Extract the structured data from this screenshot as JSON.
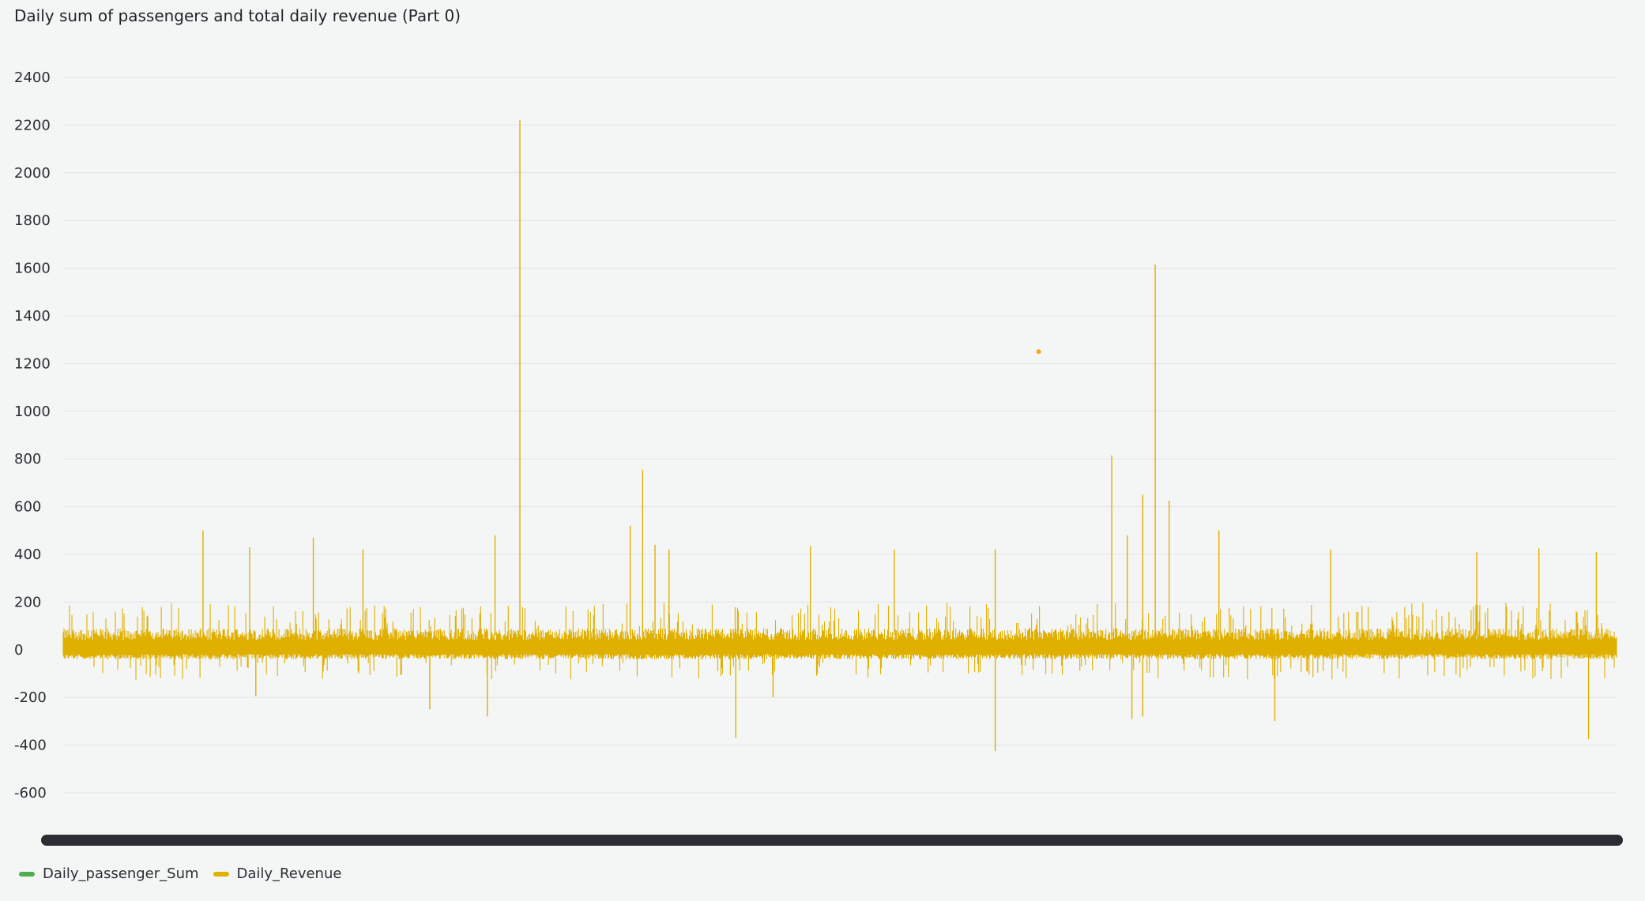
{
  "chart_title": "Daily sum of passengers and total daily revenue (Part 0)",
  "colors": {
    "passenger": "#4caf50",
    "revenue": "#e0b000",
    "outlier_point": "#f5a623",
    "scrollbar": "#2a2e33",
    "grid": "#e2e4e6",
    "background": "#f4f5f5"
  },
  "legend": [
    {
      "label": "Daily_passenger_Sum",
      "color": "#4caf50"
    },
    {
      "label": "Daily_Revenue",
      "color": "#e0b000"
    }
  ],
  "chart_data": {
    "type": "line",
    "title": "Daily sum of passengers and total daily revenue (Part 0)",
    "xlabel": "",
    "ylabel": "",
    "ylim": [
      -600,
      2400
    ],
    "yticks": [
      "2400",
      "2200",
      "2000",
      "1800",
      "1600",
      "1400",
      "1200",
      "1000",
      "800",
      "600",
      "400",
      "200",
      "0",
      "-200",
      "-400",
      "-600"
    ],
    "grid": true,
    "legend_position": "bottom-left",
    "series": [
      {
        "name": "Daily_Revenue",
        "color": "#e0b000",
        "band": {
          "typical_high": 90,
          "typical_low": -40,
          "noise_high": 180,
          "noise_low": -120
        },
        "spikes": [
          {
            "x": 0.09,
            "value": 500
          },
          {
            "x": 0.12,
            "value": 430
          },
          {
            "x": 0.124,
            "value": -195
          },
          {
            "x": 0.161,
            "value": 470
          },
          {
            "x": 0.193,
            "value": 420
          },
          {
            "x": 0.236,
            "value": -250
          },
          {
            "x": 0.278,
            "value": 480
          },
          {
            "x": 0.273,
            "value": -280
          },
          {
            "x": 0.294,
            "value": 2220
          },
          {
            "x": 0.365,
            "value": 520
          },
          {
            "x": 0.373,
            "value": 755
          },
          {
            "x": 0.381,
            "value": 440
          },
          {
            "x": 0.39,
            "value": 420
          },
          {
            "x": 0.433,
            "value": -370
          },
          {
            "x": 0.457,
            "value": -200
          },
          {
            "x": 0.481,
            "value": 435
          },
          {
            "x": 0.535,
            "value": 420
          },
          {
            "x": 0.6,
            "value": 420
          },
          {
            "x": 0.6,
            "value": -425
          },
          {
            "x": 0.675,
            "value": 815
          },
          {
            "x": 0.685,
            "value": 480
          },
          {
            "x": 0.688,
            "value": -290
          },
          {
            "x": 0.695,
            "value": 650
          },
          {
            "x": 0.695,
            "value": -280
          },
          {
            "x": 0.703,
            "value": 1615
          },
          {
            "x": 0.712,
            "value": 625
          },
          {
            "x": 0.744,
            "value": 500
          },
          {
            "x": 0.78,
            "value": -300
          },
          {
            "x": 0.816,
            "value": 420
          },
          {
            "x": 0.91,
            "value": 410
          },
          {
            "x": 0.95,
            "value": 425
          },
          {
            "x": 0.982,
            "value": -375
          },
          {
            "x": 0.987,
            "value": 410
          }
        ]
      },
      {
        "name": "Daily_passenger_Sum",
        "color": "#4caf50",
        "points": [
          {
            "x": 0.628,
            "value": 1250
          }
        ]
      }
    ]
  }
}
